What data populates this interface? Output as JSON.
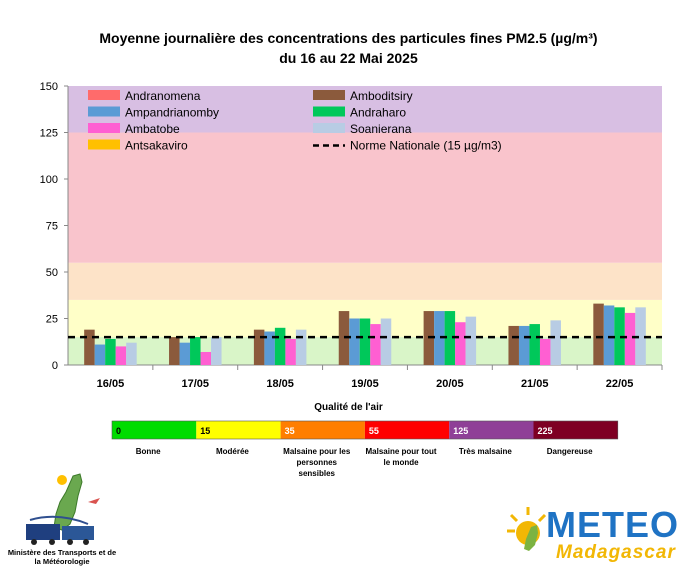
{
  "chart_data": {
    "type": "bar",
    "title": "Moyenne journalière des concentrations des particules fines PM2.5 (µg/m³)",
    "subtitle": "du 16 au 22 Mai 2025",
    "categories": [
      "16/05",
      "17/05",
      "18/05",
      "19/05",
      "20/05",
      "21/05",
      "22/05"
    ],
    "ylim": [
      0,
      150
    ],
    "yticks": [
      "0",
      "25",
      "50",
      "75",
      "100",
      "125",
      "150"
    ],
    "series": [
      {
        "name": "Andranomena",
        "color": "#ff6b6b",
        "values": [
          null,
          null,
          null,
          null,
          null,
          null,
          null
        ]
      },
      {
        "name": "Amboditsiry",
        "color": "#8b5a3c",
        "values": [
          19,
          15,
          19,
          29,
          29,
          21,
          33
        ]
      },
      {
        "name": "Ampandrianomby",
        "color": "#5b9bd5",
        "values": [
          11,
          12,
          18,
          25,
          29,
          21,
          32
        ]
      },
      {
        "name": "Andraharo",
        "color": "#00c85a",
        "values": [
          14,
          15,
          20,
          25,
          29,
          22,
          31
        ]
      },
      {
        "name": "Ambatobe",
        "color": "#ff5fd2",
        "values": [
          10,
          7,
          14,
          22,
          23,
          14,
          28
        ]
      },
      {
        "name": "Soanierana",
        "color": "#b8cce4",
        "values": [
          12,
          15,
          19,
          25,
          26,
          24,
          31
        ]
      },
      {
        "name": "Antsakaviro",
        "color": "#ffc000",
        "values": [
          null,
          null,
          null,
          null,
          null,
          null,
          null
        ]
      }
    ],
    "reference_line": {
      "name": "Norme Nationale (15 µg/m3)",
      "value": 15,
      "color": "#000000"
    },
    "bands": [
      {
        "from": 0,
        "to": 15,
        "color": "#d9f5c8"
      },
      {
        "from": 15,
        "to": 35,
        "color": "#ffffc8"
      },
      {
        "from": 35,
        "to": 55,
        "color": "#fde3c8"
      },
      {
        "from": 55,
        "to": 125,
        "color": "#f9c4cc"
      },
      {
        "from": 125,
        "to": 150,
        "color": "#d8bfe3"
      }
    ],
    "legend_placement": "top-left inside plot",
    "grid": false
  },
  "aqi": {
    "title": "Qualité de l'air",
    "levels": [
      {
        "threshold": "0",
        "label": "Bonne",
        "color": "#00dc00"
      },
      {
        "threshold": "15",
        "label": "Modérée",
        "color": "#ffff00"
      },
      {
        "threshold": "35",
        "label": "Malsaine pour les personnes sensibles",
        "color": "#ff7e00"
      },
      {
        "threshold": "55",
        "label": "Malsaine pour tout le monde",
        "color": "#ff0000"
      },
      {
        "threshold": "125",
        "label": "Très malsaine",
        "color": "#8f3f97"
      },
      {
        "threshold": "225",
        "label": "Dangereuse",
        "color": "#7e0023"
      }
    ]
  },
  "footer": {
    "ministry": "Ministère des Transports et de la Météorologie",
    "meteo_word": "METEO",
    "madagascar_word": "Madagascar"
  },
  "icons": {
    "ministry_logo": "madagascar-map-icon",
    "meteo_logo": "sun-map-icon"
  }
}
